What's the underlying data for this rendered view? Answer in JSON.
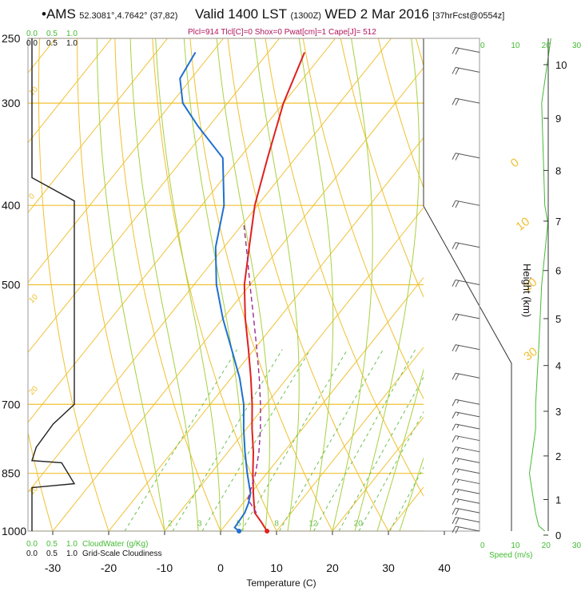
{
  "header": {
    "station_dot": "•",
    "station": "AMS",
    "coords": "52.3081°,4.7642° (37,82)",
    "valid": "Valid 1400 LST",
    "utc": "(1300Z)",
    "date": "WED 2 Mar 2016",
    "forecast": "[37hrFcst@0554z]"
  },
  "indices_text": "Plcl=914 Tlcl[C]=0 Shox=0 Pwat[cm]=1 Cape[J]= 512",
  "colors": {
    "isotherm": "#f0c030",
    "dry_adiabat": "#f0c030",
    "moist_adiabat": "#a8d040",
    "mixing_ratio": "#6cc050",
    "temperature": "#e02020",
    "dewpoint": "#2070d0",
    "parcel": "#9a2a8a",
    "cloud": "#222222",
    "wind_speed": "#44bb33",
    "wind_barb": "#555555",
    "indices": "#b0145a"
  },
  "chart_data": {
    "type": "skew-t",
    "xlabel": "Temperature (C)",
    "x_ticks": [
      -30,
      -20,
      -10,
      0,
      10,
      20,
      30,
      40
    ],
    "pressure_ticks": [
      250,
      300,
      400,
      500,
      700,
      850,
      1000
    ],
    "height_label": "Height (km)",
    "height_ticks": [
      0,
      1,
      2,
      3,
      4,
      5,
      6,
      7,
      8,
      9,
      10
    ],
    "cloud_scale_ticks": [
      "0.0",
      "0.5",
      "1.0"
    ],
    "cloud_water_label": "CloudWater (g/Kg)",
    "cloudiness_label": "Grid-Scale Cloudiness",
    "speed_ticks": [
      "0",
      "10",
      "20",
      "30"
    ],
    "speed_label": "Speed (m/s)",
    "temperature": [
      {
        "p": 1000,
        "t": 8.3
      },
      {
        "p": 975,
        "t": 6.0
      },
      {
        "p": 950,
        "t": 3.5
      },
      {
        "p": 925,
        "t": 2.0
      },
      {
        "p": 900,
        "t": 0.5
      },
      {
        "p": 850,
        "t": -2.5
      },
      {
        "p": 800,
        "t": -5.5
      },
      {
        "p": 750,
        "t": -9.0
      },
      {
        "p": 700,
        "t": -12.5
      },
      {
        "p": 650,
        "t": -16.5
      },
      {
        "p": 600,
        "t": -21.0
      },
      {
        "p": 550,
        "t": -26.0
      },
      {
        "p": 500,
        "t": -31.0
      },
      {
        "p": 450,
        "t": -35.5
      },
      {
        "p": 400,
        "t": -40.5
      },
      {
        "p": 350,
        "t": -45.0
      },
      {
        "p": 300,
        "t": -50.0
      },
      {
        "p": 260,
        "t": -53.5
      }
    ],
    "dewpoint": [
      {
        "p": 1000,
        "t": 3.3
      },
      {
        "p": 990,
        "t": 2.0
      },
      {
        "p": 950,
        "t": 1.7
      },
      {
        "p": 925,
        "t": 1.0
      },
      {
        "p": 900,
        "t": 0.0
      },
      {
        "p": 850,
        "t": -3.5
      },
      {
        "p": 800,
        "t": -7.0
      },
      {
        "p": 750,
        "t": -10.5
      },
      {
        "p": 700,
        "t": -14.0
      },
      {
        "p": 650,
        "t": -18.5
      },
      {
        "p": 600,
        "t": -24.0
      },
      {
        "p": 550,
        "t": -30.0
      },
      {
        "p": 500,
        "t": -36.0
      },
      {
        "p": 450,
        "t": -41.5
      },
      {
        "p": 400,
        "t": -46.0
      },
      {
        "p": 350,
        "t": -53.0
      },
      {
        "p": 320,
        "t": -62.0
      },
      {
        "p": 300,
        "t": -68.0
      },
      {
        "p": 280,
        "t": -72.0
      },
      {
        "p": 260,
        "t": -73.0
      }
    ],
    "parcel": [
      {
        "p": 950,
        "t": 3.8
      },
      {
        "p": 914,
        "t": 0.3
      },
      {
        "p": 850,
        "t": -2.0
      },
      {
        "p": 800,
        "t": -4.5
      },
      {
        "p": 750,
        "t": -7.5
      },
      {
        "p": 700,
        "t": -11.0
      },
      {
        "p": 650,
        "t": -15.0
      },
      {
        "p": 600,
        "t": -19.5
      },
      {
        "p": 550,
        "t": -24.5
      },
      {
        "p": 500,
        "t": -30.0
      },
      {
        "p": 450,
        "t": -36.0
      },
      {
        "p": 420,
        "t": -40.0
      }
    ],
    "surface_t": 8.3,
    "surface_td": 3.3,
    "cloudiness": [
      {
        "p": 250,
        "c": 0.0
      },
      {
        "p": 370,
        "c": 0.0
      },
      {
        "p": 395,
        "c": 1.0
      },
      {
        "p": 700,
        "c": 1.0
      },
      {
        "p": 740,
        "c": 0.5
      },
      {
        "p": 790,
        "c": 0.1
      },
      {
        "p": 820,
        "c": 0.0
      },
      {
        "p": 825,
        "c": 0.7
      },
      {
        "p": 875,
        "c": 1.0
      },
      {
        "p": 885,
        "c": 0.0
      },
      {
        "p": 1000,
        "c": 0.0
      }
    ],
    "wind_speed": [
      {
        "p": 1000,
        "s": 20
      },
      {
        "p": 985,
        "s": 18
      },
      {
        "p": 950,
        "s": 17
      },
      {
        "p": 900,
        "s": 16
      },
      {
        "p": 850,
        "s": 15
      },
      {
        "p": 800,
        "s": 16
      },
      {
        "p": 750,
        "s": 17
      },
      {
        "p": 700,
        "s": 17
      },
      {
        "p": 600,
        "s": 18
      },
      {
        "p": 500,
        "s": 19
      },
      {
        "p": 420,
        "s": 21
      },
      {
        "p": 400,
        "s": 20
      },
      {
        "p": 300,
        "s": 19
      },
      {
        "p": 250,
        "s": 22
      }
    ],
    "wind_barbs": [
      {
        "p": 1000,
        "s": 20
      },
      {
        "p": 975,
        "s": 20
      },
      {
        "p": 950,
        "s": 18
      },
      {
        "p": 925,
        "s": 17
      },
      {
        "p": 900,
        "s": 17
      },
      {
        "p": 875,
        "s": 16
      },
      {
        "p": 850,
        "s": 16
      },
      {
        "p": 825,
        "s": 16
      },
      {
        "p": 800,
        "s": 16
      },
      {
        "p": 775,
        "s": 17
      },
      {
        "p": 750,
        "s": 17
      },
      {
        "p": 725,
        "s": 17
      },
      {
        "p": 700,
        "s": 17
      },
      {
        "p": 650,
        "s": 18
      },
      {
        "p": 600,
        "s": 18
      },
      {
        "p": 550,
        "s": 19
      },
      {
        "p": 500,
        "s": 19
      },
      {
        "p": 450,
        "s": 20
      },
      {
        "p": 400,
        "s": 20
      },
      {
        "p": 350,
        "s": 20
      },
      {
        "p": 300,
        "s": 20
      },
      {
        "p": 275,
        "s": 21
      },
      {
        "p": 260,
        "s": 22
      }
    ],
    "mixing_ratio_labels": [
      "2",
      "3",
      "5",
      "8",
      "12",
      "20"
    ],
    "isotherm_labels": [
      "0",
      "10",
      "20",
      "30"
    ],
    "cloudiness_tick_labels_y": [
      "10",
      "0",
      "10",
      "20",
      "10"
    ]
  }
}
